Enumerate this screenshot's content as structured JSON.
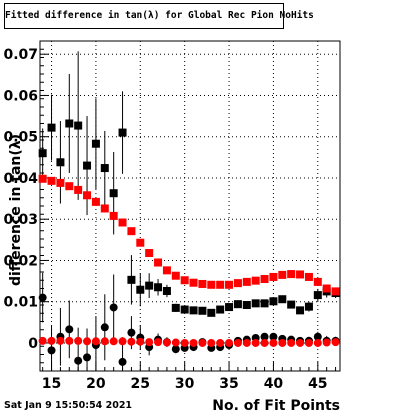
{
  "chart_data": {
    "type": "scatter",
    "title": "Fitted difference in tan(λ) for Global Rec Pion NoHits",
    "xlabel": "No. of Fit Points",
    "ylabel": "difference in tan(λ)",
    "xlim": [
      13.7,
      47.5
    ],
    "ylim": [
      -0.0068,
      0.0732
    ],
    "x_ticks": [
      15,
      20,
      25,
      30,
      35,
      40,
      45
    ],
    "y_ticks": [
      0,
      0.01,
      0.02,
      0.03,
      0.04,
      0.05,
      0.06,
      0.07
    ],
    "y_tick_labels": [
      "0",
      "0.01",
      "0.02",
      "0.03",
      "0.04",
      "0.05",
      "0.06",
      "0.07"
    ],
    "grid": true,
    "series": [
      {
        "marker": "square",
        "color": "#000000",
        "x": [
          14,
          15,
          16,
          17,
          18,
          19,
          20,
          21,
          22,
          23,
          24,
          25,
          26,
          27,
          28,
          29,
          30,
          31,
          32,
          33,
          34,
          35,
          36,
          37,
          38,
          39,
          40,
          41,
          42,
          43,
          44,
          45,
          46,
          47
        ],
        "y": [
          0.046,
          0.0522,
          0.0438,
          0.0532,
          0.0527,
          0.043,
          0.0483,
          0.0424,
          0.0363,
          0.051,
          0.0153,
          0.0129,
          0.0139,
          0.0135,
          0.0126,
          0.0085,
          0.0081,
          0.0079,
          0.0078,
          0.0073,
          0.0081,
          0.0087,
          0.0094,
          0.0092,
          0.0096,
          0.0096,
          0.0101,
          0.0106,
          0.0093,
          0.0079,
          0.0088,
          0.0116,
          0.0125,
          0.0121
        ],
        "yerr": [
          0.006,
          0.008,
          0.01,
          0.012,
          0.018,
          0.012,
          0.011,
          0.009,
          0.01,
          0.01,
          0.006,
          0.004,
          0.003,
          0.002,
          0.0015,
          0.001,
          0.0008,
          0.0008,
          0.0008,
          0.0008,
          0.0008,
          0.0008,
          0.0008,
          0.0008,
          0.0008,
          0.0008,
          0.0008,
          0.0008,
          0.0008,
          0.0008,
          0.0012,
          0.0015,
          0.0015,
          0.0012
        ]
      },
      {
        "marker": "circle",
        "color": "#000000",
        "x": [
          14,
          15,
          16,
          17,
          18,
          19,
          20,
          21,
          22,
          23,
          24,
          25,
          26,
          27,
          28,
          29,
          30,
          31,
          32,
          33,
          34,
          35,
          36,
          37,
          38,
          39,
          40,
          41,
          42,
          43,
          44,
          45,
          46,
          47
        ],
        "y": [
          0.011,
          -0.0018,
          0.0015,
          0.0033,
          -0.0043,
          -0.0035,
          -0.0005,
          0.0038,
          0.0086,
          -0.0046,
          0.0025,
          0.0013,
          -0.001,
          0.0008,
          0.0002,
          -0.0015,
          -0.0012,
          -0.001,
          0.0002,
          -0.0012,
          -0.001,
          -0.0005,
          0.0005,
          0.0008,
          0.0012,
          0.0015,
          0.0015,
          0.001,
          0.0008,
          0.0005,
          0.0005,
          0.0015,
          0.0005,
          0.0005
        ],
        "yerr": [
          0.006,
          0.006,
          0.007,
          0.007,
          0.008,
          0.007,
          0.007,
          0.008,
          0.008,
          0.006,
          0.004,
          0.003,
          0.002,
          0.0015,
          0.0012,
          0.001,
          0.0008,
          0.0008,
          0.0008,
          0.0008,
          0.0008,
          0.0008,
          0.0008,
          0.0008,
          0.0008,
          0.0008,
          0.0008,
          0.0008,
          0.0008,
          0.0008,
          0.001,
          0.0012,
          0.0012,
          0.001
        ]
      },
      {
        "marker": "square",
        "color": "#ff0000",
        "x": [
          14,
          15,
          16,
          17,
          18,
          19,
          20,
          21,
          22,
          23,
          24,
          25,
          26,
          27,
          28,
          29,
          30,
          31,
          32,
          33,
          34,
          35,
          36,
          37,
          38,
          39,
          40,
          41,
          42,
          43,
          44,
          45,
          46,
          47
        ],
        "y": [
          0.0398,
          0.0393,
          0.0388,
          0.038,
          0.0371,
          0.0358,
          0.0342,
          0.0326,
          0.0308,
          0.0292,
          0.0271,
          0.0243,
          0.0218,
          0.0195,
          0.0176,
          0.0163,
          0.0152,
          0.0146,
          0.0143,
          0.0141,
          0.0141,
          0.0141,
          0.0145,
          0.0148,
          0.0151,
          0.0155,
          0.016,
          0.0165,
          0.0167,
          0.0166,
          0.016,
          0.0148,
          0.0132,
          0.0125
        ]
      },
      {
        "marker": "circle",
        "color": "#ff0000",
        "x": [
          14,
          15,
          16,
          17,
          18,
          19,
          20,
          21,
          22,
          23,
          24,
          25,
          26,
          27,
          28,
          29,
          30,
          31,
          32,
          33,
          34,
          35,
          36,
          37,
          38,
          39,
          40,
          41,
          42,
          43,
          44,
          45,
          46,
          47
        ],
        "y": [
          0.0005,
          0.0005,
          0.0005,
          0.0005,
          0.0005,
          0.0004,
          0.0004,
          0.0004,
          0.0004,
          0.0004,
          0.0003,
          0.0003,
          0.0002,
          0.0002,
          0.0001,
          0.0001,
          0.0,
          0.0,
          0.0,
          0.0,
          0.0,
          0.0,
          0.0,
          0.0,
          0.0,
          0.0,
          0.0,
          0.0,
          0.0,
          0.0,
          0.0,
          0.0,
          0.0001,
          0.0002
        ]
      }
    ],
    "footer_text": "Sat Jan  9 15:50:54 2021"
  }
}
